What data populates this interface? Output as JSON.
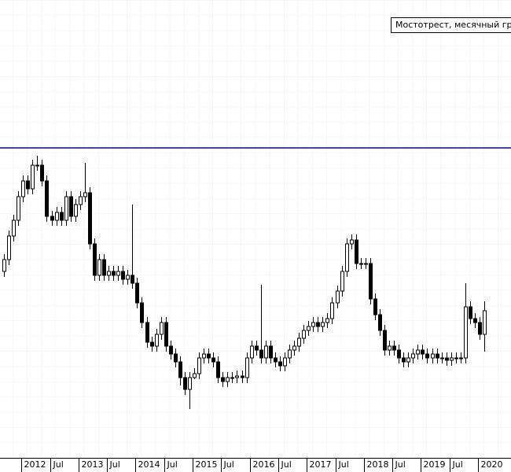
{
  "chart_data": {
    "type": "candlestick",
    "legend_text": "Мостотрест, месячный граф",
    "categories": [
      null,
      null,
      null,
      null,
      "2012",
      null,
      null,
      null,
      null,
      null,
      "Jul",
      null,
      null,
      null,
      null,
      null,
      "2013",
      null,
      null,
      null,
      null,
      null,
      "Jul",
      null,
      null,
      null,
      null,
      null,
      "2014",
      null,
      null,
      null,
      null,
      null,
      "Jul",
      null,
      null,
      null,
      null,
      null,
      "2015",
      null,
      null,
      null,
      null,
      null,
      "Jul",
      null,
      null,
      null,
      null,
      null,
      "2016",
      null,
      null,
      null,
      null,
      null,
      "Jul",
      null,
      null,
      null,
      null,
      null,
      "2017",
      null,
      null,
      null,
      null,
      null,
      "Jul",
      null,
      null,
      null,
      null,
      null,
      "2018",
      null,
      null,
      null,
      null,
      null,
      "Jul",
      null,
      null,
      null,
      null,
      null,
      "2019",
      null,
      null,
      null,
      null,
      null,
      "Jul",
      null,
      null,
      null,
      null,
      null,
      "2020",
      null
    ],
    "open": [
      255,
      270,
      300,
      320,
      350,
      370,
      360,
      390,
      390,
      370,
      325,
      320,
      330,
      320,
      350,
      325,
      340,
      350,
      355,
      290,
      250,
      270,
      250,
      255,
      250,
      255,
      245,
      250,
      240,
      215,
      190,
      165,
      160,
      175,
      190,
      160,
      150,
      140,
      120,
      105,
      120,
      125,
      145,
      150,
      145,
      140,
      120,
      115,
      120,
      120,
      122,
      120,
      145,
      160,
      155,
      145,
      160,
      145,
      140,
      135,
      145,
      155,
      160,
      170,
      180,
      185,
      190,
      185,
      190,
      195,
      215,
      230,
      255,
      290,
      295,
      265,
      265,
      265,
      220,
      200,
      180,
      155,
      160,
      155,
      145,
      140,
      145,
      150,
      155,
      150,
      145,
      150,
      145,
      145,
      142,
      145,
      145,
      145,
      210,
      195,
      190,
      175
    ],
    "high": [
      277,
      307,
      327,
      357,
      377,
      377,
      397,
      402,
      397,
      377,
      332,
      337,
      337,
      357,
      357,
      347,
      357,
      393,
      362,
      297,
      277,
      277,
      262,
      262,
      262,
      262,
      257,
      340,
      247,
      222,
      197,
      172,
      182,
      197,
      197,
      167,
      157,
      147,
      127,
      127,
      132,
      152,
      157,
      157,
      152,
      147,
      127,
      127,
      127,
      129,
      129,
      152,
      167,
      167,
      238,
      167,
      167,
      152,
      147,
      152,
      162,
      167,
      177,
      187,
      192,
      197,
      197,
      197,
      202,
      222,
      237,
      262,
      297,
      302,
      302,
      272,
      272,
      272,
      227,
      207,
      187,
      167,
      167,
      162,
      152,
      152,
      157,
      162,
      162,
      157,
      157,
      157,
      152,
      152,
      152,
      152,
      152,
      240,
      217,
      202,
      197,
      217
    ],
    "low": [
      248,
      263,
      293,
      313,
      343,
      353,
      353,
      383,
      363,
      318,
      313,
      313,
      313,
      313,
      318,
      318,
      333,
      343,
      283,
      243,
      243,
      243,
      243,
      243,
      243,
      238,
      238,
      233,
      208,
      183,
      158,
      153,
      153,
      168,
      153,
      143,
      133,
      110,
      98,
      80,
      118,
      118,
      138,
      138,
      133,
      113,
      108,
      108,
      113,
      113,
      113,
      113,
      138,
      148,
      138,
      138,
      138,
      133,
      128,
      128,
      138,
      148,
      153,
      163,
      173,
      178,
      178,
      178,
      183,
      188,
      208,
      223,
      248,
      283,
      258,
      258,
      258,
      213,
      193,
      173,
      148,
      148,
      148,
      138,
      133,
      133,
      138,
      143,
      143,
      138,
      138,
      138,
      138,
      135,
      135,
      138,
      138,
      138,
      188,
      183,
      168,
      153
    ],
    "close": [
      270,
      300,
      320,
      350,
      370,
      360,
      390,
      390,
      370,
      325,
      320,
      330,
      320,
      350,
      325,
      340,
      350,
      355,
      290,
      250,
      270,
      250,
      255,
      250,
      255,
      245,
      250,
      240,
      215,
      190,
      165,
      160,
      175,
      190,
      160,
      150,
      140,
      120,
      105,
      120,
      125,
      145,
      150,
      145,
      140,
      120,
      115,
      120,
      120,
      122,
      120,
      145,
      160,
      155,
      145,
      160,
      145,
      140,
      135,
      145,
      155,
      160,
      170,
      180,
      185,
      190,
      185,
      190,
      195,
      215,
      230,
      255,
      290,
      295,
      265,
      265,
      265,
      220,
      200,
      180,
      155,
      160,
      155,
      145,
      140,
      145,
      150,
      155,
      150,
      145,
      150,
      145,
      145,
      142,
      145,
      145,
      145,
      210,
      195,
      190,
      175,
      205
    ],
    "ylim": [
      20,
      600
    ],
    "hline": 412,
    "hline_color": "#0000cc",
    "up_color": "#ffffff",
    "down_color": "#000000",
    "grid": true
  }
}
